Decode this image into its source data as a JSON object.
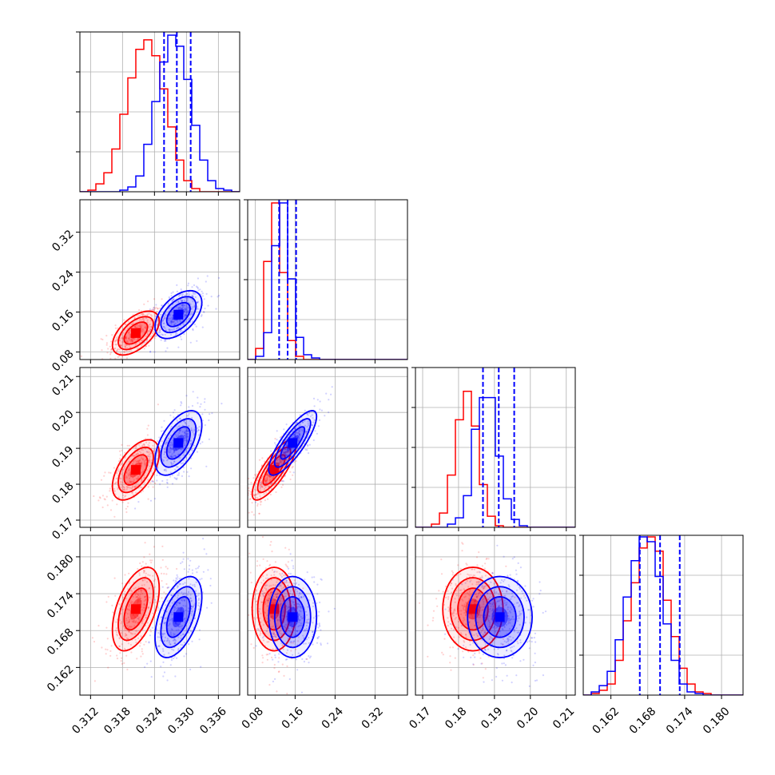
{
  "chart_data": {
    "type": "corner",
    "grid": true,
    "colors": {
      "red": "#ff0000",
      "blue": "#0000ff"
    },
    "parameters": [
      {
        "range": [
          0.31,
          0.34
        ],
        "ticks": [
          "0.312",
          "0.318",
          "0.324",
          "0.330",
          "0.336"
        ],
        "tick_values": [
          0.312,
          0.318,
          0.324,
          0.33,
          0.336
        ]
      },
      {
        "range": [
          0.065,
          0.385
        ],
        "ticks": [
          "0.08",
          "0.16",
          "0.24",
          "0.32"
        ],
        "tick_values": [
          0.08,
          0.16,
          0.24,
          0.32
        ]
      },
      {
        "range": [
          0.168,
          0.2125
        ],
        "ticks": [
          "0.17",
          "0.18",
          "0.19",
          "0.20",
          "0.21"
        ],
        "tick_values": [
          0.17,
          0.18,
          0.19,
          0.2,
          0.21
        ]
      },
      {
        "range": [
          0.1575,
          0.1835
        ],
        "ticks": [
          "0.162",
          "0.168",
          "0.174",
          "0.180"
        ],
        "tick_values": [
          0.162,
          0.168,
          0.174,
          0.18
        ]
      }
    ],
    "series": [
      {
        "color": "red",
        "means": [
          0.3205,
          0.118,
          0.184,
          0.1715
        ],
        "sigmas": [
          0.0022,
          0.022,
          0.0042,
          0.0034
        ],
        "rho": [
          [
            1,
            0.55,
            0.55,
            0.5
          ],
          [
            0.55,
            1,
            0.8,
            0.0
          ],
          [
            0.55,
            0.8,
            1,
            0.0
          ],
          [
            0.5,
            0.0,
            0.0,
            1
          ]
        ]
      },
      {
        "color": "blue",
        "means": [
          0.3285,
          0.155,
          0.1915,
          0.1702
        ],
        "sigmas": [
          0.0022,
          0.024,
          0.0045,
          0.0033
        ],
        "rho": [
          [
            1,
            0.5,
            0.55,
            0.5
          ],
          [
            0.5,
            1,
            0.82,
            0.0
          ],
          [
            0.55,
            0.82,
            1,
            0.0
          ],
          [
            0.5,
            0.0,
            0.0,
            1
          ]
        ]
      }
    ],
    "quantile_lines": [
      [
        0.3258,
        0.3282,
        0.3308
      ],
      [
        0.128,
        0.145,
        0.162
      ],
      [
        0.1868,
        0.1912,
        0.1955
      ],
      [
        0.1667,
        0.17,
        0.1732
      ]
    ],
    "hist_levels": [
      {
        "red": [
          0.0,
          0.01,
          0.05,
          0.12,
          0.27,
          0.49,
          0.72,
          0.9,
          0.96,
          0.86,
          0.65,
          0.41,
          0.2,
          0.07,
          0.02,
          0.0,
          0.0,
          0.0,
          0.0,
          0.0
        ],
        "blue": [
          0.0,
          0.0,
          0.0,
          0.0,
          0.0,
          0.01,
          0.03,
          0.1,
          0.3,
          0.57,
          0.82,
          0.99,
          0.92,
          0.71,
          0.42,
          0.2,
          0.07,
          0.02,
          0.01,
          0.0
        ]
      },
      {
        "red": [
          0.0,
          0.07,
          0.62,
          0.99,
          0.55,
          0.12,
          0.02,
          0.0,
          0.0,
          0.0,
          0.0,
          0.0,
          0.0,
          0.0,
          0.0,
          0.0,
          0.0,
          0.0,
          0.0,
          0.0
        ],
        "blue": [
          0.0,
          0.02,
          0.17,
          0.72,
          0.99,
          0.51,
          0.14,
          0.03,
          0.01,
          0.0,
          0.0,
          0.0,
          0.0,
          0.0,
          0.0,
          0.0,
          0.0,
          0.0,
          0.0,
          0.0
        ]
      },
      {
        "red": [
          0.0,
          0.0,
          0.02,
          0.09,
          0.33,
          0.68,
          0.86,
          0.64,
          0.27,
          0.07,
          0.01,
          0.0,
          0.0,
          0.0,
          0.0,
          0.0,
          0.0,
          0.0,
          0.0,
          0.0
        ],
        "blue": [
          0.0,
          0.0,
          0.0,
          0.0,
          0.02,
          0.06,
          0.2,
          0.62,
          0.82,
          0.82,
          0.45,
          0.18,
          0.05,
          0.01,
          0.0,
          0.0,
          0.0,
          0.0,
          0.0,
          0.0
        ]
      },
      {
        "red": [
          0.0,
          0.01,
          0.03,
          0.07,
          0.22,
          0.47,
          0.71,
          0.93,
          1.0,
          0.91,
          0.6,
          0.37,
          0.17,
          0.07,
          0.02,
          0.01,
          0.0,
          0.0,
          0.0,
          0.0
        ],
        "blue": [
          0.0,
          0.02,
          0.06,
          0.15,
          0.35,
          0.62,
          0.85,
          1.0,
          0.97,
          0.75,
          0.45,
          0.22,
          0.07,
          0.02,
          0.01,
          0.0,
          0.0,
          0.0,
          0.0,
          0.0
        ]
      }
    ]
  }
}
